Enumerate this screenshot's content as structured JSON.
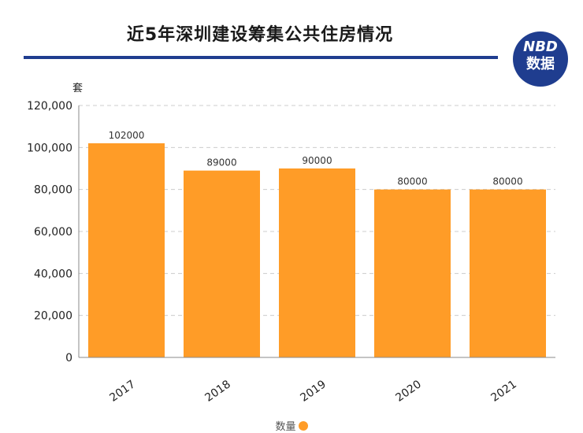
{
  "header": {
    "title": "近5年深圳建设筹集公共住房情况",
    "logo_top": "NBD",
    "logo_bottom": "数据"
  },
  "colors": {
    "bar": "#FF9C27",
    "rule": "#1F3D8F",
    "logo": "#1F3D8F",
    "grid": "#CCCCCC",
    "axis": "#888888"
  },
  "chart_data": {
    "type": "bar",
    "title": "近5年深圳建设筹集公共住房情况",
    "categories": [
      "2017",
      "2018",
      "2019",
      "2020",
      "2021"
    ],
    "series": [
      {
        "name": "数量",
        "values": [
          102000,
          89000,
          90000,
          80000,
          80000
        ]
      }
    ],
    "data_labels": [
      "102000",
      "89000",
      "90000",
      "80000",
      "80000"
    ],
    "yunit": "套",
    "ylim": [
      0,
      120000
    ],
    "yticks": [
      0,
      20000,
      40000,
      60000,
      80000,
      100000,
      120000
    ],
    "ytick_labels": [
      "0",
      "20,000",
      "40,000",
      "60,000",
      "80,000",
      "100,000",
      "120,000"
    ],
    "grid": true,
    "legend_position": "bottom"
  }
}
